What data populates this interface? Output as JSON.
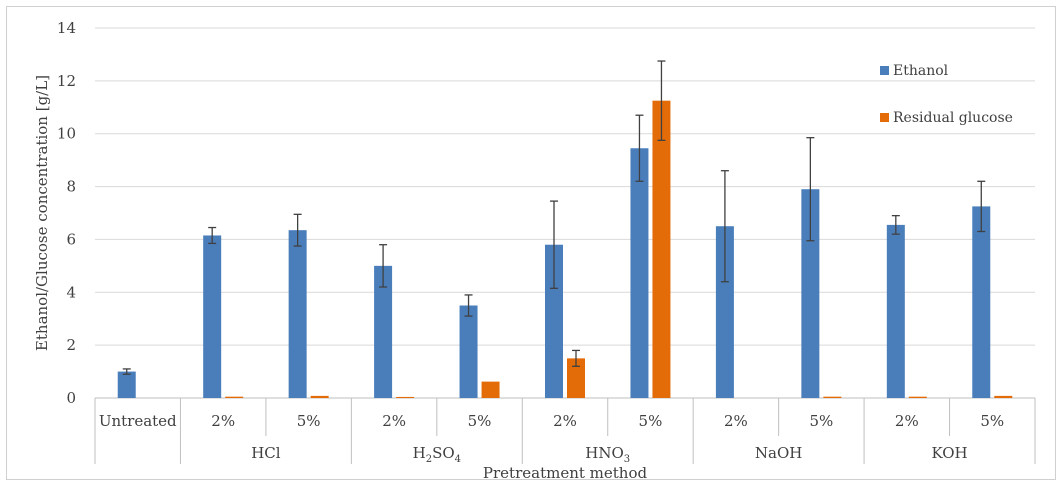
{
  "chart_data": {
    "type": "bar",
    "ylabel": "Ethanol/Glucose concentration [g/L]",
    "xlabel": "Pretreatment method",
    "ylim": [
      0,
      14
    ],
    "yticks": [
      "0",
      "2",
      "4",
      "6",
      "8",
      "10",
      "12",
      "14"
    ],
    "grid": true,
    "legend_position": "top-right",
    "colors": {
      "ethanol": "#4a7ebb",
      "glucose": "#e36c09"
    },
    "categories": [
      "Untreated",
      "2%",
      "5%",
      "2%",
      "5%",
      "2%",
      "5%",
      "2%",
      "5%",
      "2%",
      "5%"
    ],
    "groups": [
      {
        "label": "",
        "parts": []
      },
      {
        "label": "HCl",
        "parts": []
      },
      {
        "label": "H",
        "parts": [
          {
            "t": "2",
            "sub": true
          },
          {
            "t": "SO",
            "sub": false
          },
          {
            "t": "4",
            "sub": true
          }
        ]
      },
      {
        "label": "HNO",
        "parts": [
          {
            "t": "3",
            "sub": true
          }
        ]
      },
      {
        "label": "NaOH",
        "parts": []
      },
      {
        "label": "KOH",
        "parts": []
      }
    ],
    "series": [
      {
        "name": "Ethanol",
        "values": [
          1.0,
          6.15,
          6.35,
          5.0,
          3.5,
          5.8,
          9.45,
          6.5,
          7.9,
          6.55,
          7.25
        ],
        "errors": [
          0.1,
          0.3,
          0.6,
          0.8,
          0.4,
          1.65,
          1.25,
          2.1,
          1.95,
          0.35,
          0.95
        ]
      },
      {
        "name": "Residual glucose",
        "values": [
          0.0,
          0.05,
          0.08,
          0.04,
          0.62,
          1.5,
          11.25,
          0.0,
          0.05,
          0.05,
          0.08
        ],
        "errors": [
          0,
          0,
          0,
          0,
          0,
          0.3,
          1.5,
          0,
          0,
          0,
          0
        ]
      }
    ]
  }
}
